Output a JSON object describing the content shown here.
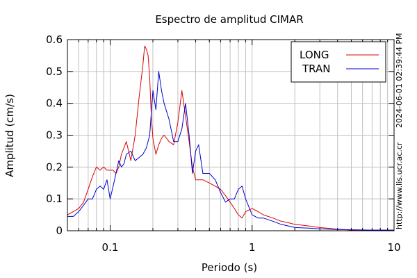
{
  "chart_data": {
    "type": "line",
    "title": "Espectro de amplitud CIMAR",
    "xlabel": "Periodo (s)",
    "ylabel": "Amplitud (cm/s)",
    "x_scale": "log",
    "xlim": [
      0.05,
      10
    ],
    "ylim": [
      0,
      0.6
    ],
    "x_ticks": [
      0.1,
      1,
      10
    ],
    "x_tick_labels": [
      "0.1",
      "1",
      "10"
    ],
    "y_ticks": [
      0,
      0.1,
      0.2,
      0.3,
      0.4,
      0.5,
      0.6
    ],
    "y_tick_labels": [
      "0",
      "0.1",
      "0.2",
      "0.3",
      "0.4",
      "0.5",
      "0.6"
    ],
    "grid": true,
    "legend_position": "top-right",
    "series": [
      {
        "name": "LONG",
        "color": "#dd0000",
        "x": [
          0.05,
          0.055,
          0.06,
          0.065,
          0.07,
          0.075,
          0.08,
          0.085,
          0.09,
          0.095,
          0.1,
          0.105,
          0.11,
          0.115,
          0.12,
          0.125,
          0.13,
          0.14,
          0.15,
          0.16,
          0.17,
          0.175,
          0.18,
          0.185,
          0.19,
          0.195,
          0.2,
          0.21,
          0.22,
          0.23,
          0.24,
          0.26,
          0.28,
          0.3,
          0.32,
          0.34,
          0.36,
          0.38,
          0.4,
          0.45,
          0.5,
          0.55,
          0.6,
          0.65,
          0.7,
          0.75,
          0.8,
          0.85,
          0.9,
          1.0,
          1.1,
          1.2,
          1.4,
          1.6,
          1.8,
          2.0,
          2.5,
          3.0,
          4.0,
          5.0,
          7.0,
          10.0
        ],
        "values": [
          0.05,
          0.06,
          0.07,
          0.09,
          0.13,
          0.17,
          0.2,
          0.19,
          0.2,
          0.19,
          0.19,
          0.19,
          0.18,
          0.2,
          0.24,
          0.26,
          0.28,
          0.22,
          0.3,
          0.42,
          0.52,
          0.58,
          0.57,
          0.55,
          0.48,
          0.36,
          0.29,
          0.24,
          0.27,
          0.29,
          0.3,
          0.28,
          0.27,
          0.34,
          0.44,
          0.36,
          0.28,
          0.2,
          0.16,
          0.16,
          0.15,
          0.14,
          0.13,
          0.11,
          0.09,
          0.07,
          0.05,
          0.04,
          0.06,
          0.07,
          0.06,
          0.05,
          0.04,
          0.03,
          0.025,
          0.02,
          0.015,
          0.01,
          0.005,
          0.002,
          0.002,
          0.002
        ]
      },
      {
        "name": "TRAN",
        "color": "#0000cc",
        "x": [
          0.05,
          0.055,
          0.06,
          0.065,
          0.07,
          0.075,
          0.08,
          0.085,
          0.09,
          0.095,
          0.1,
          0.105,
          0.11,
          0.115,
          0.12,
          0.125,
          0.13,
          0.14,
          0.15,
          0.16,
          0.17,
          0.18,
          0.19,
          0.2,
          0.21,
          0.22,
          0.23,
          0.24,
          0.26,
          0.28,
          0.3,
          0.32,
          0.34,
          0.36,
          0.38,
          0.4,
          0.42,
          0.45,
          0.5,
          0.55,
          0.6,
          0.65,
          0.7,
          0.75,
          0.8,
          0.85,
          0.9,
          1.0,
          1.1,
          1.2,
          1.4,
          1.6,
          1.8,
          2.0,
          2.5,
          3.0,
          4.0,
          5.0,
          7.0,
          10.0
        ],
        "values": [
          0.045,
          0.045,
          0.06,
          0.08,
          0.1,
          0.1,
          0.13,
          0.14,
          0.13,
          0.16,
          0.1,
          0.14,
          0.18,
          0.22,
          0.2,
          0.21,
          0.24,
          0.25,
          0.22,
          0.23,
          0.24,
          0.26,
          0.3,
          0.44,
          0.38,
          0.5,
          0.44,
          0.4,
          0.35,
          0.28,
          0.28,
          0.32,
          0.4,
          0.3,
          0.18,
          0.25,
          0.27,
          0.18,
          0.18,
          0.16,
          0.12,
          0.09,
          0.1,
          0.1,
          0.13,
          0.14,
          0.1,
          0.05,
          0.04,
          0.04,
          0.03,
          0.02,
          0.015,
          0.01,
          0.008,
          0.006,
          0.004,
          0.003,
          0.002,
          0.002
        ]
      }
    ]
  },
  "side_texts": {
    "timestamp": "2024-06-01 02:39:44 PM",
    "url": "http://www.lis.ucr.ac.cr"
  }
}
